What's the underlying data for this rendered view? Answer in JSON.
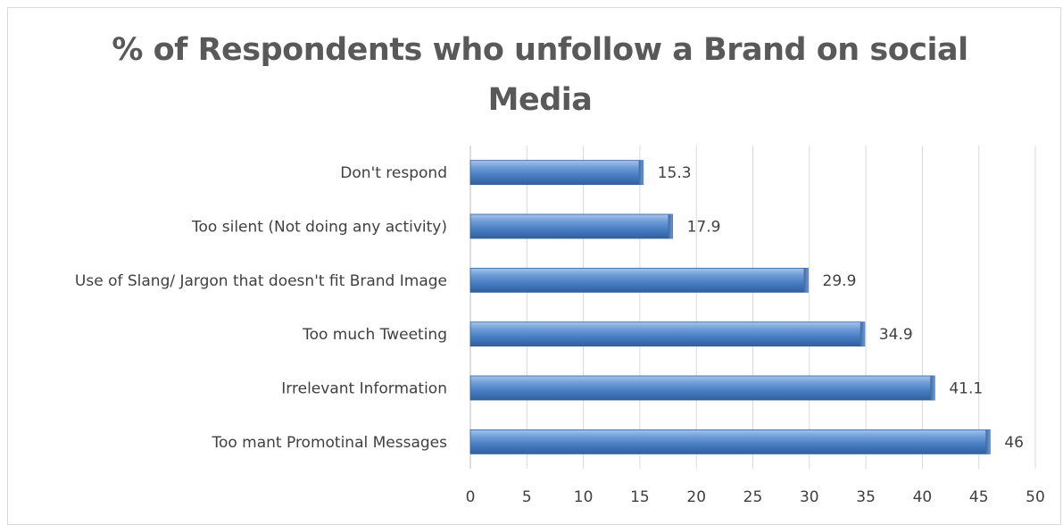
{
  "chart_data": {
    "type": "bar",
    "orientation": "horizontal",
    "title": "% of Respondents who unfollow a Brand on social Media",
    "xlabel": "",
    "ylabel": "",
    "categories": [
      "Don't respond",
      "Too silent (Not doing any activity)",
      "Use of Slang/ Jargon that doesn't fit Brand Image",
      "Too much Tweeting",
      "Irrelevant Information",
      "Too mant Promotinal Messages"
    ],
    "values": [
      15.3,
      17.9,
      29.9,
      34.9,
      41.1,
      46
    ],
    "value_labels": [
      "15.3",
      "17.9",
      "29.9",
      "34.9",
      "41.1",
      "46"
    ],
    "xlim": [
      0,
      50
    ],
    "x_ticks": [
      0,
      5,
      10,
      15,
      20,
      25,
      30,
      35,
      40,
      45,
      50
    ],
    "grid": "vertical",
    "legend": "none",
    "bar_color": "#4f81bd"
  }
}
